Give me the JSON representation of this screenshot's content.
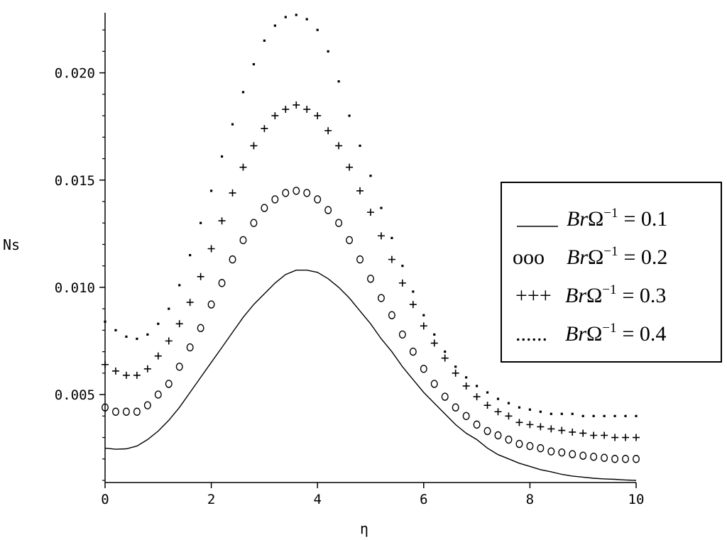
{
  "chart_data": {
    "type": "line",
    "xlabel": "η",
    "ylabel": "Ns",
    "xlim": [
      0,
      10
    ],
    "ylim": [
      0.0009,
      0.0228
    ],
    "x_ticks": [
      0,
      2,
      4,
      6,
      8,
      10
    ],
    "x_tick_labels": [
      "0",
      "2",
      "4",
      "6",
      "8",
      "10"
    ],
    "y_ticks": [
      0.005,
      0.01,
      0.015,
      0.02
    ],
    "y_tick_labels": [
      "0.005",
      "0.010",
      "0.015",
      "0.020"
    ],
    "grid": false,
    "legend_position": "right",
    "series": [
      {
        "legend_marker": "___",
        "legend_lhs": "Br",
        "legend_omega": "Ω",
        "legend_exp": "−1",
        "legend_rhs": "= 0.1",
        "style": "solid",
        "x": [
          0,
          0.2,
          0.4,
          0.6,
          0.8,
          1.0,
          1.2,
          1.4,
          1.6,
          1.8,
          2.0,
          2.2,
          2.4,
          2.6,
          2.8,
          3.0,
          3.2,
          3.4,
          3.6,
          3.8,
          4.0,
          4.2,
          4.4,
          4.6,
          4.8,
          5.0,
          5.2,
          5.4,
          5.6,
          5.8,
          6.0,
          6.2,
          6.4,
          6.6,
          6.8,
          7.0,
          7.2,
          7.4,
          7.6,
          7.8,
          8.0,
          8.2,
          8.4,
          8.6,
          8.8,
          9.0,
          9.2,
          9.4,
          9.6,
          9.8,
          10.0
        ],
        "values": [
          0.0025,
          0.00245,
          0.00247,
          0.0026,
          0.0029,
          0.0033,
          0.0038,
          0.0044,
          0.0051,
          0.0058,
          0.0065,
          0.0072,
          0.0079,
          0.0086,
          0.0092,
          0.0097,
          0.0102,
          0.0106,
          0.0108,
          0.0108,
          0.0107,
          0.0104,
          0.01,
          0.0095,
          0.0089,
          0.0083,
          0.0076,
          0.007,
          0.0063,
          0.0057,
          0.0051,
          0.0046,
          0.0041,
          0.0036,
          0.0032,
          0.0029,
          0.0025,
          0.0022,
          0.002,
          0.0018,
          0.00165,
          0.0015,
          0.0014,
          0.00128,
          0.0012,
          0.00115,
          0.0011,
          0.00107,
          0.00105,
          0.00102,
          0.001
        ]
      },
      {
        "legend_marker": "ooo",
        "legend_lhs": "Br",
        "legend_omega": "Ω",
        "legend_exp": "−1",
        "legend_rhs": "= 0.2",
        "style": "circle",
        "x": [
          0,
          0.2,
          0.4,
          0.6,
          0.8,
          1.0,
          1.2,
          1.4,
          1.6,
          1.8,
          2.0,
          2.2,
          2.4,
          2.6,
          2.8,
          3.0,
          3.2,
          3.4,
          3.6,
          3.8,
          4.0,
          4.2,
          4.4,
          4.6,
          4.8,
          5.0,
          5.2,
          5.4,
          5.6,
          5.8,
          6.0,
          6.2,
          6.4,
          6.6,
          6.8,
          7.0,
          7.2,
          7.4,
          7.6,
          7.8,
          8.0,
          8.2,
          8.4,
          8.6,
          8.8,
          9.0,
          9.2,
          9.4,
          9.6,
          9.8,
          10.0
        ],
        "values": [
          0.0044,
          0.0042,
          0.0042,
          0.0042,
          0.0045,
          0.005,
          0.0055,
          0.0063,
          0.0072,
          0.0081,
          0.0092,
          0.0102,
          0.0113,
          0.0122,
          0.013,
          0.0137,
          0.0141,
          0.0144,
          0.0145,
          0.0144,
          0.0141,
          0.0136,
          0.013,
          0.0122,
          0.0113,
          0.0104,
          0.0095,
          0.0087,
          0.0078,
          0.007,
          0.0062,
          0.0055,
          0.0049,
          0.0044,
          0.004,
          0.0036,
          0.0033,
          0.0031,
          0.0029,
          0.0027,
          0.0026,
          0.0025,
          0.00235,
          0.0023,
          0.00222,
          0.00215,
          0.0021,
          0.00205,
          0.002,
          0.002,
          0.002
        ]
      },
      {
        "legend_marker": "+++",
        "legend_lhs": "Br",
        "legend_omega": "Ω",
        "legend_exp": "−1",
        "legend_rhs": "= 0.3",
        "style": "plus",
        "x": [
          0,
          0.2,
          0.4,
          0.6,
          0.8,
          1.0,
          1.2,
          1.4,
          1.6,
          1.8,
          2.0,
          2.2,
          2.4,
          2.6,
          2.8,
          3.0,
          3.2,
          3.4,
          3.6,
          3.8,
          4.0,
          4.2,
          4.4,
          4.6,
          4.8,
          5.0,
          5.2,
          5.4,
          5.6,
          5.8,
          6.0,
          6.2,
          6.4,
          6.6,
          6.8,
          7.0,
          7.2,
          7.4,
          7.6,
          7.8,
          8.0,
          8.2,
          8.4,
          8.6,
          8.8,
          9.0,
          9.2,
          9.4,
          9.6,
          9.8,
          10.0
        ],
        "values": [
          0.0064,
          0.0061,
          0.0059,
          0.0059,
          0.0062,
          0.0068,
          0.0075,
          0.0083,
          0.0093,
          0.0105,
          0.0118,
          0.0131,
          0.0144,
          0.0156,
          0.0166,
          0.0174,
          0.018,
          0.0183,
          0.0185,
          0.0183,
          0.018,
          0.0173,
          0.0166,
          0.0156,
          0.0145,
          0.0135,
          0.0124,
          0.0113,
          0.0102,
          0.0092,
          0.0082,
          0.0074,
          0.0067,
          0.006,
          0.0054,
          0.0049,
          0.0045,
          0.0042,
          0.004,
          0.0037,
          0.0036,
          0.0035,
          0.0034,
          0.00333,
          0.00325,
          0.0032,
          0.0031,
          0.0031,
          0.003,
          0.003,
          0.003
        ]
      },
      {
        "legend_marker": "......",
        "legend_lhs": "Br",
        "legend_omega": "Ω",
        "legend_exp": "−1",
        "legend_rhs": "= 0.4",
        "style": "dot",
        "x": [
          0,
          0.2,
          0.4,
          0.6,
          0.8,
          1.0,
          1.2,
          1.4,
          1.6,
          1.8,
          2.0,
          2.2,
          2.4,
          2.6,
          2.8,
          3.0,
          3.2,
          3.4,
          3.6,
          3.8,
          4.0,
          4.2,
          4.4,
          4.6,
          4.8,
          5.0,
          5.2,
          5.4,
          5.6,
          5.8,
          6.0,
          6.2,
          6.4,
          6.6,
          6.8,
          7.0,
          7.2,
          7.4,
          7.6,
          7.8,
          8.0,
          8.2,
          8.4,
          8.6,
          8.8,
          9.0,
          9.2,
          9.4,
          9.6,
          9.8,
          10.0
        ],
        "values": [
          0.0084,
          0.008,
          0.0077,
          0.0076,
          0.0078,
          0.0083,
          0.009,
          0.0101,
          0.0115,
          0.013,
          0.0145,
          0.0161,
          0.0176,
          0.0191,
          0.0204,
          0.0215,
          0.0222,
          0.0226,
          0.0227,
          0.0225,
          0.022,
          0.021,
          0.0196,
          0.018,
          0.0166,
          0.0152,
          0.0137,
          0.0123,
          0.011,
          0.0098,
          0.0087,
          0.0078,
          0.007,
          0.0063,
          0.0058,
          0.0054,
          0.0051,
          0.0048,
          0.0046,
          0.0044,
          0.0043,
          0.0042,
          0.0041,
          0.0041,
          0.0041,
          0.004,
          0.004,
          0.004,
          0.004,
          0.004,
          0.004
        ]
      }
    ]
  }
}
